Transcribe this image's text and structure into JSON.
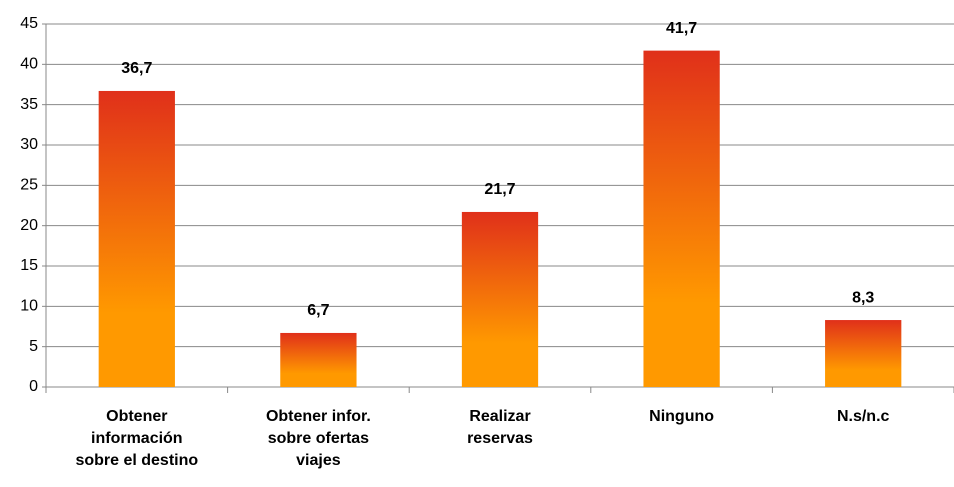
{
  "chart_data": {
    "type": "bar",
    "categories": [
      "Obtener\ninformación\nsobre el destino",
      "Obtener infor.\nsobre ofertas\nviajes",
      "Realizar\nreservas",
      "Ninguno",
      "N.s/n.c"
    ],
    "values": [
      36.7,
      6.7,
      21.7,
      41.7,
      8.3
    ],
    "value_labels": [
      "36,7",
      "6,7",
      "21,7",
      "41,7",
      "8,3"
    ],
    "color": [
      "#e0301a",
      "#ff9900"
    ],
    "ylim": [
      0,
      45
    ],
    "yticks": [
      0,
      5,
      10,
      15,
      20,
      25,
      30,
      35,
      40,
      45
    ],
    "grid": true
  }
}
